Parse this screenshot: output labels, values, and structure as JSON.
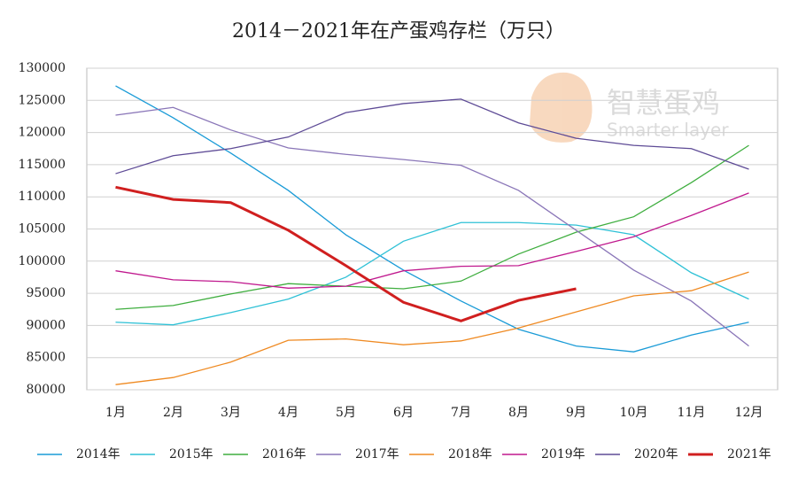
{
  "chart_data": {
    "type": "line",
    "title": "2014－2021年在产蛋鸡存栏（万只）",
    "watermark": {
      "title": "智慧蛋鸡",
      "subtitle": "Smarter layer"
    },
    "categories": [
      "1月",
      "2月",
      "3月",
      "4月",
      "5月",
      "6月",
      "7月",
      "8月",
      "9月",
      "10月",
      "11月",
      "12月"
    ],
    "ylim": [
      80000,
      130000
    ],
    "yticks": [
      80000,
      85000,
      90000,
      95000,
      100000,
      105000,
      110000,
      115000,
      120000,
      125000,
      130000
    ],
    "grid": true,
    "legend": "bottom",
    "series": [
      {
        "name": "2014年",
        "color": "#1a9bd7",
        "values": [
          127250,
          122300,
          116800,
          111000,
          104100,
          98600,
          93800,
          89400,
          86800,
          85900,
          88500,
          90500
        ]
      },
      {
        "name": "2015年",
        "color": "#2fc1d6",
        "values": [
          90500,
          90100,
          92000,
          94100,
          97500,
          103100,
          106000,
          106000,
          105600,
          104100,
          98200,
          94100
        ]
      },
      {
        "name": "2016年",
        "color": "#3fae3f",
        "values": [
          92500,
          93100,
          94900,
          96500,
          96100,
          95700,
          96900,
          101100,
          104500,
          106900,
          112200,
          118000
        ]
      },
      {
        "name": "2017年",
        "color": "#8a76b8",
        "values": [
          122700,
          123900,
          120400,
          117600,
          116600,
          115800,
          114900,
          111000,
          104800,
          98600,
          93800,
          86800
        ]
      },
      {
        "name": "2018年",
        "color": "#ef8a22",
        "values": [
          80800,
          81900,
          84300,
          87700,
          87900,
          87000,
          87600,
          89600,
          92100,
          94600,
          95400,
          98300
        ]
      },
      {
        "name": "2019年",
        "color": "#c0198e",
        "values": [
          98500,
          97100,
          96800,
          95800,
          96100,
          98500,
          99200,
          99300,
          101500,
          103800,
          107100,
          110600
        ]
      },
      {
        "name": "2020年",
        "color": "#5e4b96",
        "values": [
          113600,
          116400,
          117500,
          119300,
          123100,
          124500,
          125200,
          121500,
          119100,
          118000,
          117500,
          114300
        ]
      },
      {
        "name": "2021年",
        "color": "#d01f1f",
        "values": [
          111500,
          109600,
          109100,
          104800,
          99300,
          93600,
          90700,
          93900,
          95700,
          null,
          null,
          null
        ]
      }
    ]
  }
}
